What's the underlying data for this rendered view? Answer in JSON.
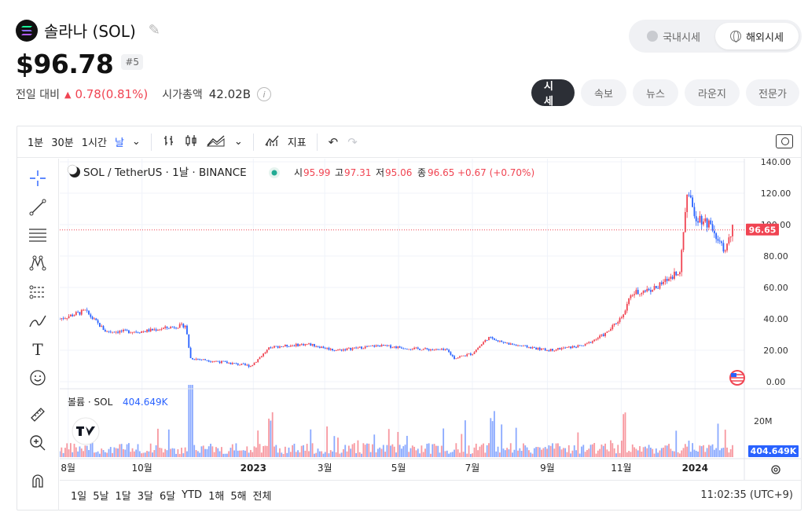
{
  "coin": {
    "name": "솔라나 (SOL)",
    "price": "$96.78",
    "rank": "#5",
    "change_label": "전일 대비",
    "change_value": "0.78(0.81%)",
    "mcap_label": "시가총액",
    "mcap_value": "42.02B",
    "info_glyph": "i"
  },
  "market_toggle": {
    "domestic": "국내시세",
    "overseas": "해외시세"
  },
  "tabs": [
    {
      "label": "시세"
    },
    {
      "label": "속보"
    },
    {
      "label": "뉴스"
    },
    {
      "label": "라운지"
    },
    {
      "label": "전문가"
    }
  ],
  "toolbar": {
    "intervals": [
      "1분",
      "30분",
      "1시간",
      "날"
    ],
    "indicators_label": "지표",
    "chevron": "⌄"
  },
  "legend": {
    "symbol": "SOL / TetherUS · 1날 · BINANCE",
    "o_label": "시",
    "o": "95.99",
    "h_label": "고",
    "h": "97.31",
    "l_label": "저",
    "l": "95.06",
    "c_label": "종",
    "c": "96.65",
    "change": "+0.67 (+0.70%)",
    "volume_label": "볼륨 · SOL",
    "volume_value": "404.649K"
  },
  "bottom_bar": {
    "ranges": [
      "1일",
      "5날",
      "1달",
      "3달",
      "6달",
      "YTD",
      "1해",
      "5해",
      "전체"
    ],
    "clock": "11:02:35 (UTC+9)"
  },
  "colors": {
    "up": "#f04452",
    "down": "#2962ff",
    "accent": "#2962ff"
  },
  "chart_data": {
    "type": "candlestick",
    "price_axis": {
      "ticks": [
        "140.00",
        "120.00",
        "100.00",
        "80.00",
        "60.00",
        "40.00",
        "20.00",
        "0.00"
      ],
      "range": [
        0,
        140
      ]
    },
    "volume_axis": {
      "ticks": [
        "20M"
      ]
    },
    "last_price_label": "96.65",
    "last_volume_label": "404.649K",
    "x_ticks": [
      "8월",
      "10월",
      "2023",
      "3월",
      "5월",
      "7월",
      "9월",
      "11월",
      "2024"
    ],
    "trend": {
      "x": [
        "2022-07-25",
        "2022-08-15",
        "2022-09-01",
        "2022-10-01",
        "2022-11-06",
        "2022-11-10",
        "2022-12-01",
        "2022-12-30",
        "2023-01-15",
        "2023-02-15",
        "2023-03-10",
        "2023-04-15",
        "2023-05-15",
        "2023-06-10",
        "2023-06-16",
        "2023-07-01",
        "2023-07-14",
        "2023-08-01",
        "2023-09-01",
        "2023-10-01",
        "2023-10-20",
        "2023-11-01",
        "2023-11-10",
        "2023-12-01",
        "2023-12-20",
        "2023-12-25",
        "2024-01-01",
        "2024-01-15",
        "2024-01-25",
        "2024-02-01"
      ],
      "close": [
        40,
        45,
        32,
        32,
        36,
        15,
        13,
        10,
        22,
        24,
        20,
        23,
        21,
        20,
        15,
        18,
        28,
        24,
        20,
        23,
        31,
        41,
        56,
        60,
        72,
        121,
        106,
        100,
        82,
        96.65
      ]
    }
  }
}
